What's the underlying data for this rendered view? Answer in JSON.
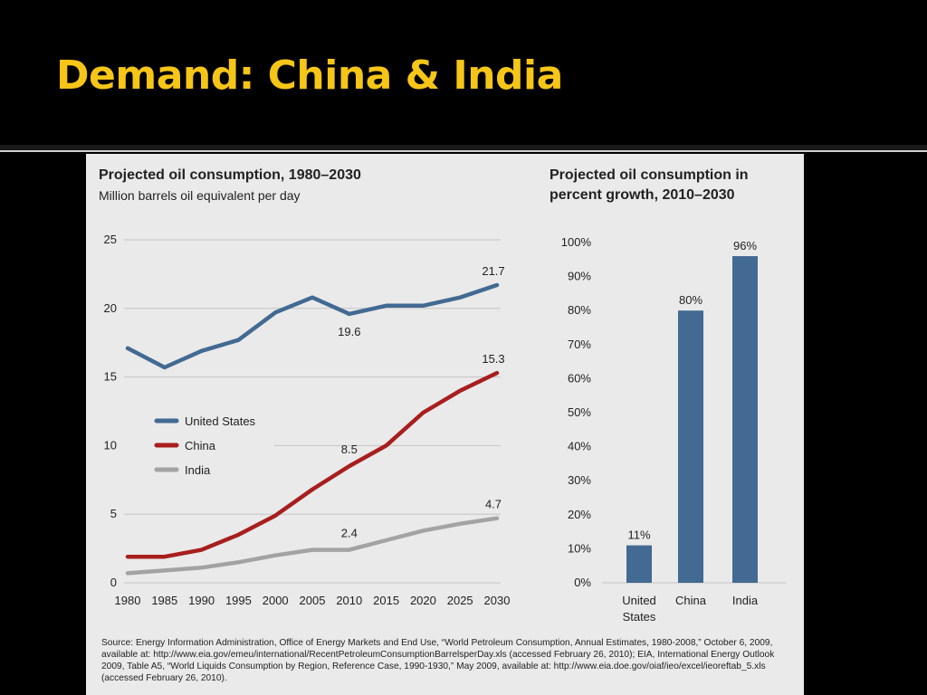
{
  "slide": {
    "title": "Demand: China & India"
  },
  "colors": {
    "title": "#f5c518",
    "us": "#426a92",
    "china": "#a81e1e",
    "india": "#a3a3a3",
    "bar": "#426a92",
    "panel": "#eaeaea"
  },
  "chart_data": [
    {
      "type": "line",
      "title": "Projected oil consumption, 1980–2030",
      "subtitle": "Million barrels oil equivalent per day",
      "x": [
        1980,
        1985,
        1990,
        1995,
        2000,
        2005,
        2010,
        2015,
        2020,
        2025,
        2030
      ],
      "x_tick_labels": [
        "1980",
        "1985",
        "1990",
        "1995",
        "2000",
        "2005",
        "2010",
        "2015",
        "2020",
        "2025",
        "2030"
      ],
      "y_ticks": [
        0,
        5,
        10,
        15,
        20,
        25
      ],
      "y_tick_labels": [
        "0",
        "5",
        "10",
        "15",
        "20",
        "25"
      ],
      "ylim": [
        0,
        25
      ],
      "grid": true,
      "legend_position": "left-middle",
      "series": [
        {
          "name": "United States",
          "color": "#426a92",
          "values": [
            17.1,
            15.7,
            16.9,
            17.7,
            19.7,
            20.8,
            19.6,
            20.2,
            20.2,
            20.8,
            21.7
          ]
        },
        {
          "name": "China",
          "color": "#a81e1e",
          "values": [
            1.9,
            1.9,
            2.4,
            3.5,
            4.9,
            6.8,
            8.5,
            10.0,
            12.4,
            14.0,
            15.3
          ]
        },
        {
          "name": "India",
          "color": "#a3a3a3",
          "values": [
            0.7,
            0.9,
            1.1,
            1.5,
            2.0,
            2.4,
            2.4,
            3.1,
            3.8,
            4.3,
            4.7
          ]
        }
      ],
      "annotations": [
        {
          "series": 0,
          "index": 6,
          "text": "19.6"
        },
        {
          "series": 0,
          "index": 10,
          "text": "21.7"
        },
        {
          "series": 1,
          "index": 6,
          "text": "8.5"
        },
        {
          "series": 1,
          "index": 10,
          "text": "15.3"
        },
        {
          "series": 2,
          "index": 6,
          "text": "2.4"
        },
        {
          "series": 2,
          "index": 10,
          "text": "4.7"
        }
      ]
    },
    {
      "type": "bar",
      "title": "Projected oil consumption in percent growth, 2010–2030",
      "title_lines": [
        "Projected oil consumption in",
        "percent growth, 2010–2030"
      ],
      "categories": [
        "United States",
        "China",
        "India"
      ],
      "category_lines": [
        [
          "United",
          "States"
        ],
        [
          "China"
        ],
        [
          "India"
        ]
      ],
      "values": [
        11,
        80,
        96
      ],
      "value_labels": [
        "11%",
        "80%",
        "96%"
      ],
      "y_ticks": [
        0,
        10,
        20,
        30,
        40,
        50,
        60,
        70,
        80,
        90,
        100
      ],
      "y_tick_labels": [
        "0%",
        "10%",
        "20%",
        "30%",
        "40%",
        "50%",
        "60%",
        "70%",
        "80%",
        "90%",
        "100%"
      ],
      "ylim": [
        0,
        100
      ],
      "grid": false
    }
  ],
  "source_note": "Source: Energy Information Administration, Office of Energy Markets and End Use, “World Petroleum Consumption, Annual Estimates, 1980-2008,” October 6, 2009, available at: http://www.eia.gov/emeu/international/RecentPetroleumConsumptionBarrelsperDay.xls (accessed February 26, 2010); EIA, International Energy Outlook 2009, Table A5, “World Liquids Consumption by Region, Reference Case, 1990-1930,” May 2009, available at: http://www.eia.doe.gov/oiaf/ieo/excel/ieoreftab_5.xls (accessed February 26, 2010)."
}
